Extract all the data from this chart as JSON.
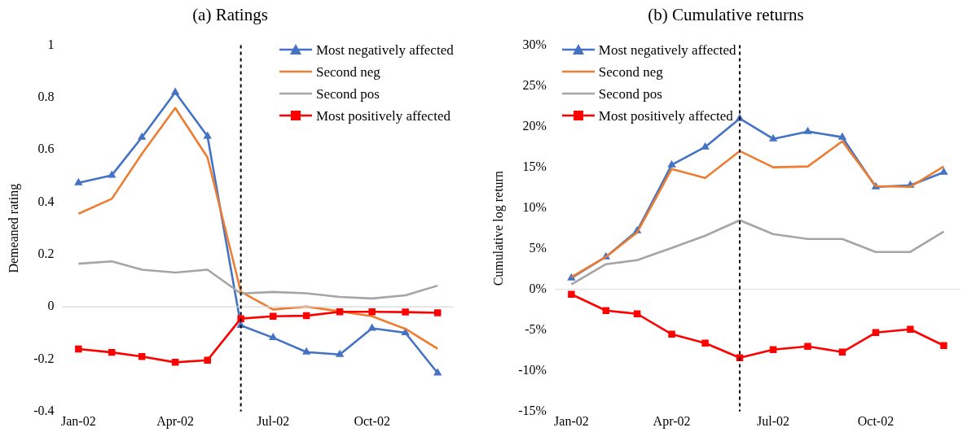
{
  "chart_data": [
    {
      "type": "line",
      "title": "(a) Ratings",
      "ylabel": "Demeaned rating",
      "x": [
        "2002-01",
        "2002-02",
        "2002-03",
        "2002-04",
        "2002-05",
        "2002-06",
        "2002-07",
        "2002-08",
        "2002-09",
        "2002-10",
        "2002-11",
        "2002-12"
      ],
      "xlim": [
        "2001-12-17",
        "2002-12-16"
      ],
      "xticks": [
        {
          "value": "2002-01",
          "label": "Jan-02"
        },
        {
          "value": "2002-04",
          "label": "Apr-02"
        },
        {
          "value": "2002-07",
          "label": "Jul-02"
        },
        {
          "value": "2002-10",
          "label": "Oct-02"
        }
      ],
      "ylim": [
        -0.4,
        1
      ],
      "yticks": [
        -0.4,
        -0.2,
        0,
        0.2,
        0.4,
        0.6,
        0.8,
        1
      ],
      "legend": "top right",
      "grid": false,
      "ref_lines": [
        {
          "axis": "y",
          "value": 0,
          "line_style": "solid",
          "color": "#d9d9d9"
        },
        {
          "axis": "x",
          "value": "2002-06",
          "line_style": "dashed",
          "color": "#000000"
        }
      ],
      "series": [
        {
          "name": "Most negatively affected",
          "color": "#4472c4",
          "marker": "triangle",
          "values": [
            0.474,
            0.503,
            0.648,
            0.82,
            0.652,
            -0.071,
            -0.118,
            -0.173,
            -0.182,
            -0.082,
            -0.099,
            -0.253
          ]
        },
        {
          "name": "Second neg",
          "color": "#ed7d31",
          "marker": "none",
          "values": [
            0.356,
            0.413,
            0.585,
            0.76,
            0.571,
            0.058,
            -0.01,
            0.001,
            -0.017,
            -0.036,
            -0.084,
            -0.16
          ]
        },
        {
          "name": "Second pos",
          "color": "#a5a5a5",
          "marker": "none",
          "values": [
            0.165,
            0.174,
            0.142,
            0.131,
            0.142,
            0.051,
            0.057,
            0.052,
            0.038,
            0.032,
            0.044,
            0.081
          ]
        },
        {
          "name": "Most positively affected",
          "color": "#ff0000",
          "marker": "square",
          "values": [
            -0.161,
            -0.174,
            -0.19,
            -0.212,
            -0.204,
            -0.045,
            -0.036,
            -0.034,
            -0.019,
            -0.019,
            -0.02,
            -0.023
          ]
        }
      ]
    },
    {
      "type": "line",
      "title": "(b) Cumulative returns",
      "ylabel": "Cumulative log return",
      "x": [
        "2002-01",
        "2002-02",
        "2002-03",
        "2002-04",
        "2002-05",
        "2002-06",
        "2002-07",
        "2002-08",
        "2002-09",
        "2002-10",
        "2002-11",
        "2002-12"
      ],
      "xlim": [
        "2001-12-17",
        "2002-12-16"
      ],
      "xticks": [
        {
          "value": "2002-01",
          "label": "Jan-02"
        },
        {
          "value": "2002-04",
          "label": "Apr-02"
        },
        {
          "value": "2002-07",
          "label": "Jul-02"
        },
        {
          "value": "2002-10",
          "label": "Oct-02"
        }
      ],
      "ylim": [
        -15,
        30
      ],
      "yticks": [
        {
          "value": -15,
          "label": "-15%"
        },
        {
          "value": -10,
          "label": "-10%"
        },
        {
          "value": -5,
          "label": "-5%"
        },
        {
          "value": 0,
          "label": "0%"
        },
        {
          "value": 5,
          "label": "5%"
        },
        {
          "value": 10,
          "label": "10%"
        },
        {
          "value": 15,
          "label": "15%"
        },
        {
          "value": 20,
          "label": "20%"
        },
        {
          "value": 25,
          "label": "25%"
        },
        {
          "value": 30,
          "label": "30%"
        }
      ],
      "legend": "top left",
      "grid": false,
      "ref_lines": [
        {
          "axis": "y",
          "value": 0,
          "line_style": "solid",
          "color": "#d9d9d9"
        },
        {
          "axis": "x",
          "value": "2002-06",
          "line_style": "dashed",
          "color": "#000000"
        }
      ],
      "series": [
        {
          "name": "Most negatively affected",
          "color": "#4472c4",
          "marker": "triangle",
          "values": [
            1.4,
            4.0,
            7.2,
            15.3,
            17.5,
            21.0,
            18.5,
            19.4,
            18.7,
            12.6,
            12.8,
            14.4
          ]
        },
        {
          "name": "Second neg",
          "color": "#ed7d31",
          "marker": "none",
          "values": [
            1.5,
            4.0,
            7.0,
            14.8,
            13.7,
            17.0,
            15.0,
            15.1,
            18.2,
            12.7,
            12.6,
            15.1
          ]
        },
        {
          "name": "Second pos",
          "color": "#a5a5a5",
          "marker": "none",
          "values": [
            0.6,
            3.1,
            3.6,
            5.1,
            6.6,
            8.5,
            6.8,
            6.2,
            6.2,
            4.6,
            4.6,
            7.1
          ]
        },
        {
          "name": "Most positively affected",
          "color": "#ff0000",
          "marker": "square",
          "values": [
            -0.6,
            -2.6,
            -3.0,
            -5.5,
            -6.6,
            -8.4,
            -7.4,
            -7.0,
            -7.7,
            -5.3,
            -4.9,
            -6.9
          ]
        }
      ]
    }
  ]
}
